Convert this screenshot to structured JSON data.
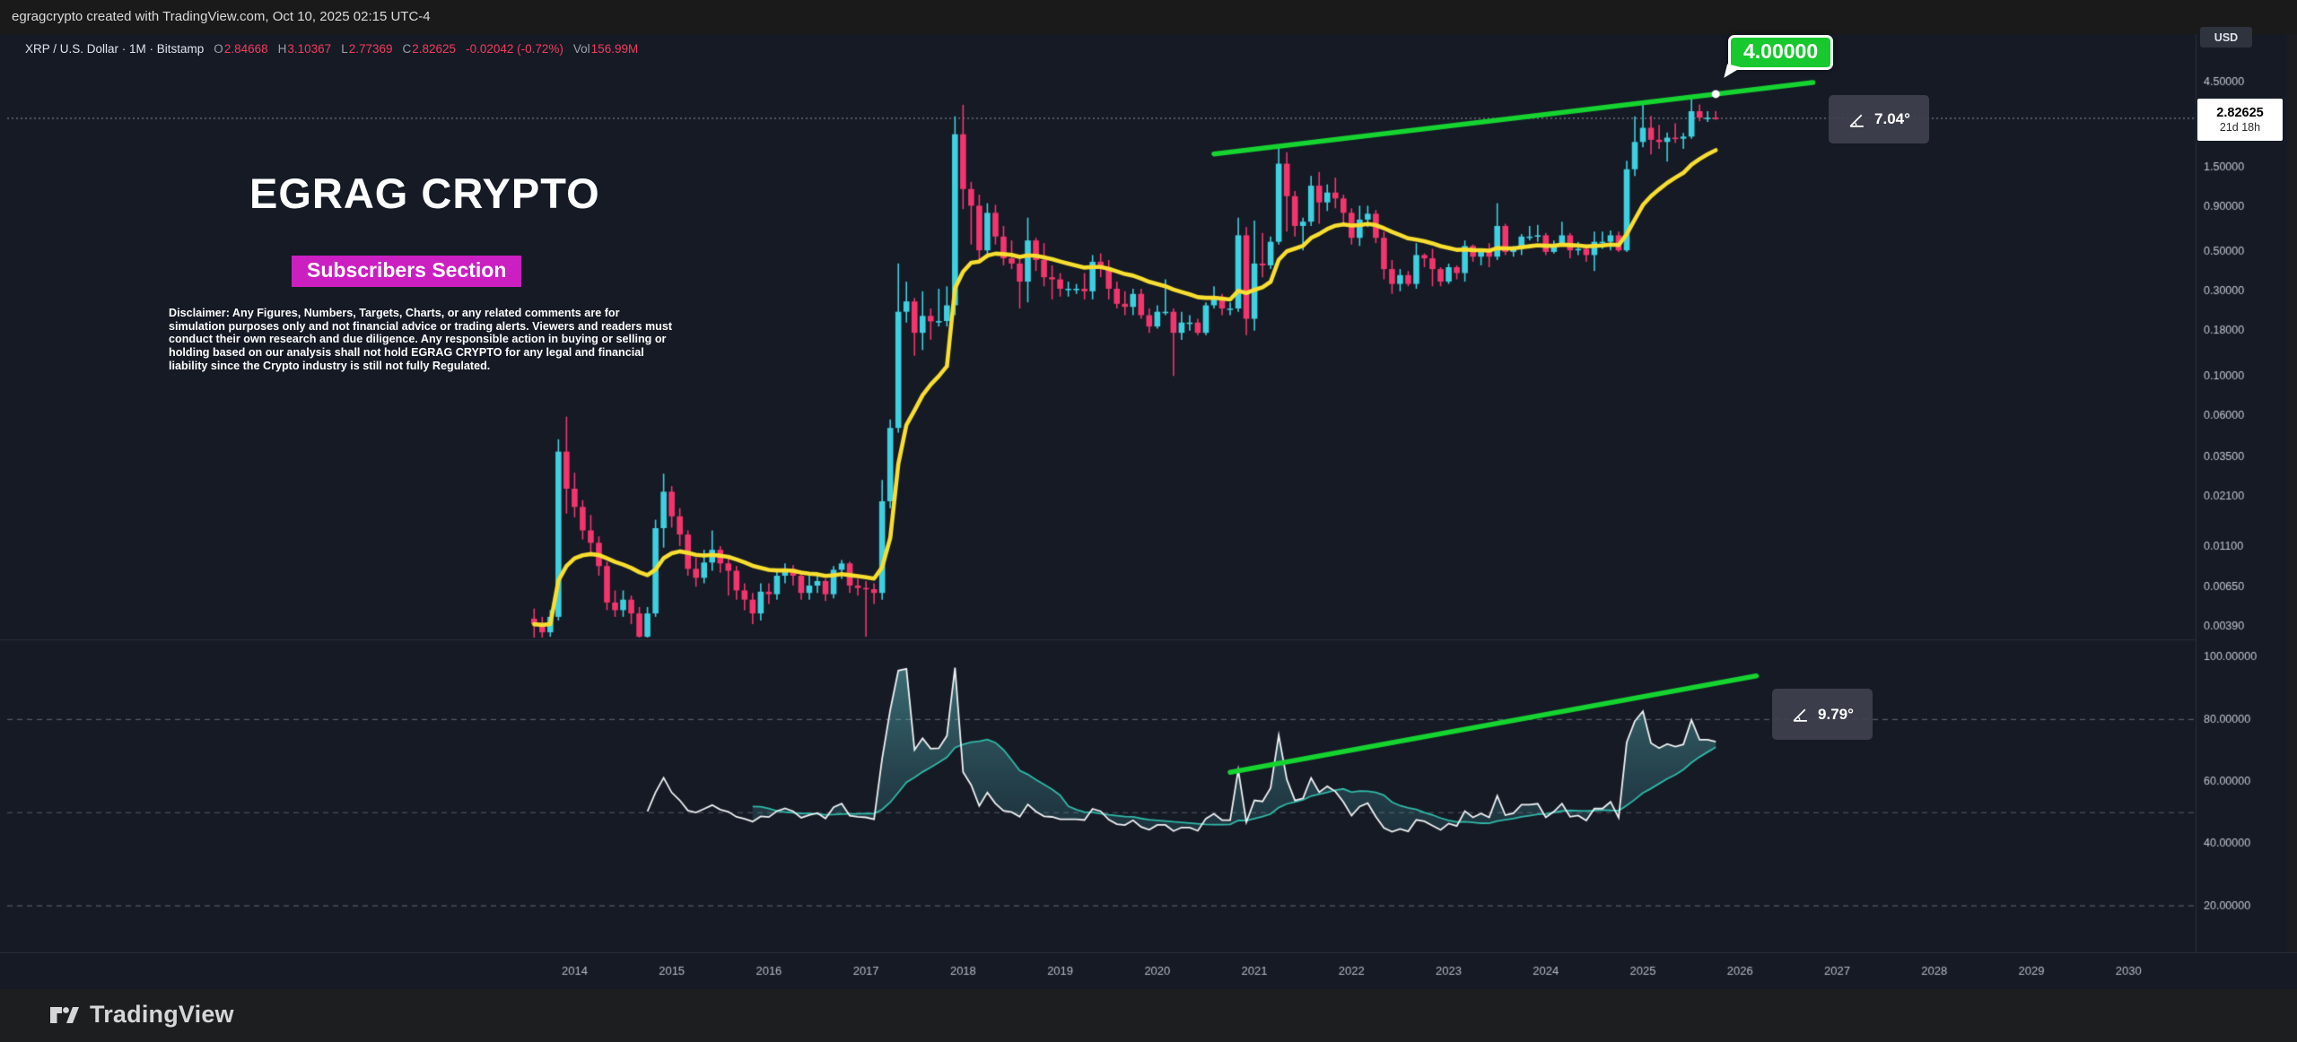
{
  "attribution": "egragcrypto created with TradingView.com, Oct 10, 2025 02:15 UTC-4",
  "legend": {
    "symbol_line": "XRP / U.S. Dollar · 1M · Bitstamp",
    "o_label": "O",
    "o": "2.84668",
    "h_label": "H",
    "h": "3.10367",
    "l_label": "L",
    "l": "2.77369",
    "c_label": "C",
    "c": "2.82625",
    "change": "-0.02042 (-0.72%)",
    "vol_label": "Vol",
    "vol": "156.99M"
  },
  "watermark": {
    "title": "EGRAG CRYPTO",
    "badge": "Subscribers Section",
    "disclaimer": "Disclaimer: Any Figures, Numbers, Targets, Charts, or any related comments are for simulation purposes only and not financial advice or trading alerts. Viewers and readers must conduct their own research and due diligence. Any responsible action in buying or selling or holding based on our analysis shall not hold EGRAG CRYPTO for any legal and financial liability since the Crypto industry is still not fully Regulated."
  },
  "price_scale": {
    "currency": "USD",
    "last_price": "2.82625",
    "countdown": "21d 18h"
  },
  "footer": {
    "brand": "TradingView"
  },
  "colors": {
    "bg": "#151a25",
    "up": "#3ed0e0",
    "down": "#f4356d",
    "ma": "#f8de30",
    "trend_green": "#16d430",
    "legend_red": "#f23d5c",
    "rsi_line": "#f0f1f3",
    "rsi_ma": "#31b9a9",
    "badge_magenta": "#cb1fc1",
    "grid": "#2b2f3b"
  },
  "chart_data": {
    "type": "candlestick",
    "title": "XRP / U.S. Dollar",
    "interval": "1M",
    "exchange": "Bitstamp",
    "scale": "log",
    "price_line": 2.82625,
    "price_axis": {
      "ticks": [
        {
          "v": 4.5,
          "label": "4.50000"
        },
        {
          "v": 1.5,
          "label": "1.50000"
        },
        {
          "v": 0.9,
          "label": "0.90000"
        },
        {
          "v": 0.5,
          "label": "0.50000"
        },
        {
          "v": 0.3,
          "label": "0.30000"
        },
        {
          "v": 0.18,
          "label": "0.18000"
        },
        {
          "v": 0.1,
          "label": "0.10000"
        },
        {
          "v": 0.06,
          "label": "0.06000"
        },
        {
          "v": 0.035,
          "label": "0.03500"
        },
        {
          "v": 0.021,
          "label": "0.02100"
        },
        {
          "v": 0.011,
          "label": "0.01100"
        },
        {
          "v": 0.0065,
          "label": "0.00650"
        },
        {
          "v": 0.0039,
          "label": "0.00390"
        }
      ]
    },
    "rsi_axis": {
      "ticks": [
        {
          "v": 100,
          "label": "100.00000"
        },
        {
          "v": 80,
          "label": "80.00000"
        },
        {
          "v": 60,
          "label": "60.00000"
        },
        {
          "v": 40,
          "label": "40.00000"
        },
        {
          "v": 20,
          "label": "20.00000"
        }
      ],
      "dashed_bands": [
        80,
        50,
        20
      ]
    },
    "time_axis": {
      "first_candle": "2013-08",
      "years": [
        2014,
        2015,
        2016,
        2017,
        2018,
        2019,
        2020,
        2021,
        2022,
        2023,
        2024,
        2025,
        2026,
        2027,
        2028,
        2029,
        2030
      ]
    },
    "overlays": {
      "ma": {
        "name": "EMA",
        "length": 21
      },
      "price_trendline": {
        "from": {
          "t": "2020-08",
          "v": 1.78
        },
        "to": {
          "t": "2026-10",
          "v": 4.5
        },
        "marker_t": "2025-10",
        "target_label": "4.00000",
        "angle_label": "7.04°"
      },
      "rsi_trendline": {
        "from": {
          "t": "2020-10",
          "v": 63
        },
        "to": {
          "t": "2026-03",
          "v": 94
        },
        "angle_label": "9.79°"
      },
      "rsi": {
        "length": 14,
        "ma_length": 14
      }
    },
    "candles": [
      [
        "2013-08",
        0.0043,
        0.0049,
        0.0028,
        0.004
      ],
      [
        "2013-09",
        0.004,
        0.0044,
        0.0033,
        0.0036
      ],
      [
        "2013-10",
        0.0036,
        0.0048,
        0.0034,
        0.0044
      ],
      [
        "2013-11",
        0.0044,
        0.044,
        0.0042,
        0.0375
      ],
      [
        "2013-12",
        0.0375,
        0.059,
        0.0168,
        0.0232
      ],
      [
        "2014-01",
        0.0232,
        0.0285,
        0.016,
        0.0183
      ],
      [
        "2014-02",
        0.0183,
        0.02,
        0.012,
        0.0135
      ],
      [
        "2014-03",
        0.0135,
        0.0165,
        0.01,
        0.0115
      ],
      [
        "2014-04",
        0.0115,
        0.0125,
        0.0075,
        0.0085
      ],
      [
        "2014-05",
        0.0085,
        0.009,
        0.0048,
        0.0053
      ],
      [
        "2014-06",
        0.0053,
        0.0062,
        0.0044,
        0.0048
      ],
      [
        "2014-07",
        0.0048,
        0.0062,
        0.0044,
        0.0055
      ],
      [
        "2014-08",
        0.0055,
        0.0058,
        0.004,
        0.0046
      ],
      [
        "2014-09",
        0.0046,
        0.005,
        0.0028,
        0.0034
      ],
      [
        "2014-10",
        0.0034,
        0.005,
        0.003,
        0.0046
      ],
      [
        "2014-11",
        0.0046,
        0.0155,
        0.0044,
        0.0139
      ],
      [
        "2014-12",
        0.0139,
        0.0282,
        0.0108,
        0.0223
      ],
      [
        "2015-01",
        0.0223,
        0.024,
        0.014,
        0.0162
      ],
      [
        "2015-02",
        0.0162,
        0.018,
        0.011,
        0.0128
      ],
      [
        "2015-03",
        0.0128,
        0.0135,
        0.0075,
        0.0082
      ],
      [
        "2015-04",
        0.0082,
        0.0095,
        0.0065,
        0.0073
      ],
      [
        "2015-05",
        0.0073,
        0.0105,
        0.0068,
        0.0089
      ],
      [
        "2015-06",
        0.0089,
        0.0135,
        0.008,
        0.0105
      ],
      [
        "2015-07",
        0.0105,
        0.011,
        0.0078,
        0.0088
      ],
      [
        "2015-08",
        0.0088,
        0.0095,
        0.0058,
        0.008
      ],
      [
        "2015-09",
        0.008,
        0.0085,
        0.0055,
        0.0062
      ],
      [
        "2015-10",
        0.0062,
        0.0068,
        0.0048,
        0.0055
      ],
      [
        "2015-11",
        0.0055,
        0.006,
        0.004,
        0.0046
      ],
      [
        "2015-12",
        0.0046,
        0.0068,
        0.0042,
        0.0061
      ],
      [
        "2016-01",
        0.0061,
        0.0068,
        0.0052,
        0.0059
      ],
      [
        "2016-02",
        0.0059,
        0.0082,
        0.0055,
        0.0075
      ],
      [
        "2016-03",
        0.0075,
        0.0088,
        0.0068,
        0.0082
      ],
      [
        "2016-04",
        0.0082,
        0.0086,
        0.0066,
        0.0075
      ],
      [
        "2016-05",
        0.0075,
        0.0078,
        0.0055,
        0.006
      ],
      [
        "2016-06",
        0.006,
        0.0075,
        0.0055,
        0.0066
      ],
      [
        "2016-07",
        0.0066,
        0.0078,
        0.006,
        0.007
      ],
      [
        "2016-08",
        0.007,
        0.0072,
        0.0054,
        0.0059
      ],
      [
        "2016-09",
        0.0059,
        0.0085,
        0.0056,
        0.0081
      ],
      [
        "2016-10",
        0.0081,
        0.0092,
        0.0072,
        0.0088
      ],
      [
        "2016-11",
        0.0088,
        0.009,
        0.006,
        0.0066
      ],
      [
        "2016-12",
        0.0066,
        0.0072,
        0.0058,
        0.0064
      ],
      [
        "2017-01",
        0.0064,
        0.007,
        0.0034,
        0.0063
      ],
      [
        "2017-02",
        0.0063,
        0.0068,
        0.0052,
        0.006
      ],
      [
        "2017-03",
        0.006,
        0.026,
        0.0055,
        0.0197
      ],
      [
        "2017-04",
        0.0197,
        0.057,
        0.018,
        0.051
      ],
      [
        "2017-05",
        0.051,
        0.43,
        0.048,
        0.23
      ],
      [
        "2017-06",
        0.23,
        0.34,
        0.2,
        0.263
      ],
      [
        "2017-07",
        0.263,
        0.275,
        0.13,
        0.175
      ],
      [
        "2017-08",
        0.175,
        0.3,
        0.14,
        0.218
      ],
      [
        "2017-09",
        0.218,
        0.24,
        0.16,
        0.203
      ],
      [
        "2017-10",
        0.203,
        0.31,
        0.19,
        0.204
      ],
      [
        "2017-11",
        0.204,
        0.32,
        0.19,
        0.25
      ],
      [
        "2017-12",
        0.25,
        2.9,
        0.22,
        2.3
      ],
      [
        "2018-01",
        2.3,
        3.37,
        0.87,
        1.13
      ],
      [
        "2018-02",
        1.13,
        1.24,
        0.55,
        0.91
      ],
      [
        "2018-03",
        0.91,
        1.05,
        0.45,
        0.51
      ],
      [
        "2018-04",
        0.51,
        0.94,
        0.46,
        0.83
      ],
      [
        "2018-05",
        0.83,
        0.92,
        0.55,
        0.61
      ],
      [
        "2018-06",
        0.61,
        0.7,
        0.42,
        0.46
      ],
      [
        "2018-07",
        0.46,
        0.58,
        0.4,
        0.43
      ],
      [
        "2018-08",
        0.43,
        0.46,
        0.24,
        0.34
      ],
      [
        "2018-09",
        0.34,
        0.78,
        0.26,
        0.58
      ],
      [
        "2018-10",
        0.58,
        0.6,
        0.39,
        0.45
      ],
      [
        "2018-11",
        0.45,
        0.56,
        0.32,
        0.36
      ],
      [
        "2018-12",
        0.36,
        0.42,
        0.27,
        0.35
      ],
      [
        "2019-01",
        0.35,
        0.38,
        0.28,
        0.31
      ],
      [
        "2019-02",
        0.31,
        0.34,
        0.28,
        0.31
      ],
      [
        "2019-03",
        0.31,
        0.33,
        0.29,
        0.31
      ],
      [
        "2019-04",
        0.31,
        0.38,
        0.27,
        0.3
      ],
      [
        "2019-05",
        0.3,
        0.48,
        0.27,
        0.44
      ],
      [
        "2019-06",
        0.44,
        0.49,
        0.36,
        0.41
      ],
      [
        "2019-07",
        0.41,
        0.45,
        0.27,
        0.31
      ],
      [
        "2019-08",
        0.31,
        0.34,
        0.24,
        0.255
      ],
      [
        "2019-09",
        0.255,
        0.3,
        0.22,
        0.245
      ],
      [
        "2019-10",
        0.245,
        0.31,
        0.22,
        0.29
      ],
      [
        "2019-11",
        0.29,
        0.31,
        0.21,
        0.22
      ],
      [
        "2019-12",
        0.22,
        0.24,
        0.175,
        0.19
      ],
      [
        "2020-01",
        0.19,
        0.25,
        0.185,
        0.23
      ],
      [
        "2020-02",
        0.23,
        0.35,
        0.22,
        0.23
      ],
      [
        "2020-03",
        0.23,
        0.24,
        0.1,
        0.175
      ],
      [
        "2020-04",
        0.175,
        0.23,
        0.16,
        0.2
      ],
      [
        "2020-05",
        0.2,
        0.22,
        0.18,
        0.2
      ],
      [
        "2020-06",
        0.2,
        0.21,
        0.17,
        0.175
      ],
      [
        "2020-07",
        0.175,
        0.26,
        0.17,
        0.25
      ],
      [
        "2020-08",
        0.25,
        0.32,
        0.24,
        0.28
      ],
      [
        "2020-09",
        0.28,
        0.29,
        0.22,
        0.24
      ],
      [
        "2020-10",
        0.24,
        0.26,
        0.22,
        0.24
      ],
      [
        "2020-11",
        0.24,
        0.78,
        0.23,
        0.62
      ],
      [
        "2020-12",
        0.62,
        0.69,
        0.17,
        0.21
      ],
      [
        "2021-01",
        0.21,
        0.75,
        0.18,
        0.43
      ],
      [
        "2021-02",
        0.43,
        0.64,
        0.36,
        0.42
      ],
      [
        "2021-03",
        0.42,
        0.61,
        0.4,
        0.57
      ],
      [
        "2021-04",
        0.57,
        1.96,
        0.55,
        1.57
      ],
      [
        "2021-05",
        1.57,
        1.82,
        0.65,
        1.03
      ],
      [
        "2021-06",
        1.03,
        1.1,
        0.61,
        0.7
      ],
      [
        "2021-07",
        0.7,
        0.78,
        0.51,
        0.74
      ],
      [
        "2021-08",
        0.74,
        1.34,
        0.7,
        1.18
      ],
      [
        "2021-09",
        1.18,
        1.41,
        0.72,
        0.95
      ],
      [
        "2021-10",
        0.95,
        1.2,
        0.85,
        1.08
      ],
      [
        "2021-11",
        1.08,
        1.31,
        0.88,
        1.0
      ],
      [
        "2021-12",
        1.0,
        1.05,
        0.72,
        0.83
      ],
      [
        "2022-01",
        0.83,
        0.88,
        0.55,
        0.6
      ],
      [
        "2022-02",
        0.6,
        0.91,
        0.54,
        0.76
      ],
      [
        "2022-03",
        0.76,
        0.91,
        0.69,
        0.82
      ],
      [
        "2022-04",
        0.82,
        0.86,
        0.56,
        0.6
      ],
      [
        "2022-05",
        0.6,
        0.65,
        0.35,
        0.4
      ],
      [
        "2022-06",
        0.4,
        0.45,
        0.29,
        0.33
      ],
      [
        "2022-07",
        0.33,
        0.4,
        0.3,
        0.37
      ],
      [
        "2022-08",
        0.37,
        0.39,
        0.32,
        0.33
      ],
      [
        "2022-09",
        0.33,
        0.56,
        0.31,
        0.48
      ],
      [
        "2022-10",
        0.48,
        0.49,
        0.41,
        0.46
      ],
      [
        "2022-11",
        0.46,
        0.52,
        0.32,
        0.4
      ],
      [
        "2022-12",
        0.4,
        0.41,
        0.32,
        0.34
      ],
      [
        "2023-01",
        0.34,
        0.43,
        0.33,
        0.41
      ],
      [
        "2023-02",
        0.41,
        0.42,
        0.35,
        0.38
      ],
      [
        "2023-03",
        0.38,
        0.58,
        0.34,
        0.54
      ],
      [
        "2023-04",
        0.54,
        0.55,
        0.44,
        0.47
      ],
      [
        "2023-05",
        0.47,
        0.52,
        0.42,
        0.51
      ],
      [
        "2023-06",
        0.51,
        0.56,
        0.41,
        0.47
      ],
      [
        "2023-07",
        0.47,
        0.94,
        0.45,
        0.7
      ],
      [
        "2023-08",
        0.7,
        0.72,
        0.48,
        0.5
      ],
      [
        "2023-09",
        0.5,
        0.54,
        0.47,
        0.52
      ],
      [
        "2023-10",
        0.52,
        0.63,
        0.48,
        0.61
      ],
      [
        "2023-11",
        0.61,
        0.7,
        0.58,
        0.61
      ],
      [
        "2023-12",
        0.61,
        0.71,
        0.57,
        0.62
      ],
      [
        "2024-01",
        0.62,
        0.64,
        0.48,
        0.5
      ],
      [
        "2024-02",
        0.5,
        0.58,
        0.49,
        0.55
      ],
      [
        "2024-03",
        0.55,
        0.74,
        0.54,
        0.62
      ],
      [
        "2024-04",
        0.62,
        0.64,
        0.46,
        0.51
      ],
      [
        "2024-05",
        0.51,
        0.57,
        0.48,
        0.52
      ],
      [
        "2024-06",
        0.52,
        0.54,
        0.44,
        0.48
      ],
      [
        "2024-07",
        0.48,
        0.65,
        0.39,
        0.57
      ],
      [
        "2024-08",
        0.57,
        0.65,
        0.52,
        0.57
      ],
      [
        "2024-09",
        0.57,
        0.66,
        0.51,
        0.62
      ],
      [
        "2024-10",
        0.62,
        0.65,
        0.5,
        0.51
      ],
      [
        "2024-11",
        0.51,
        1.63,
        0.5,
        1.46
      ],
      [
        "2024-12",
        1.46,
        2.9,
        1.34,
        2.08
      ],
      [
        "2025-01",
        2.08,
        3.4,
        1.94,
        2.5
      ],
      [
        "2025-02",
        2.5,
        2.92,
        1.77,
        2.14
      ],
      [
        "2025-03",
        2.14,
        2.6,
        1.9,
        2.08
      ],
      [
        "2025-04",
        2.08,
        2.35,
        1.61,
        2.2
      ],
      [
        "2025-05",
        2.2,
        2.65,
        2.05,
        2.17
      ],
      [
        "2025-06",
        2.17,
        2.34,
        1.9,
        2.23
      ],
      [
        "2025-07",
        2.23,
        3.66,
        2.17,
        3.1
      ],
      [
        "2025-08",
        3.1,
        3.38,
        2.72,
        2.85
      ],
      [
        "2025-09",
        2.85,
        3.1,
        2.7,
        2.85
      ],
      [
        "2025-10",
        2.84668,
        3.10367,
        2.77369,
        2.82625
      ]
    ]
  }
}
